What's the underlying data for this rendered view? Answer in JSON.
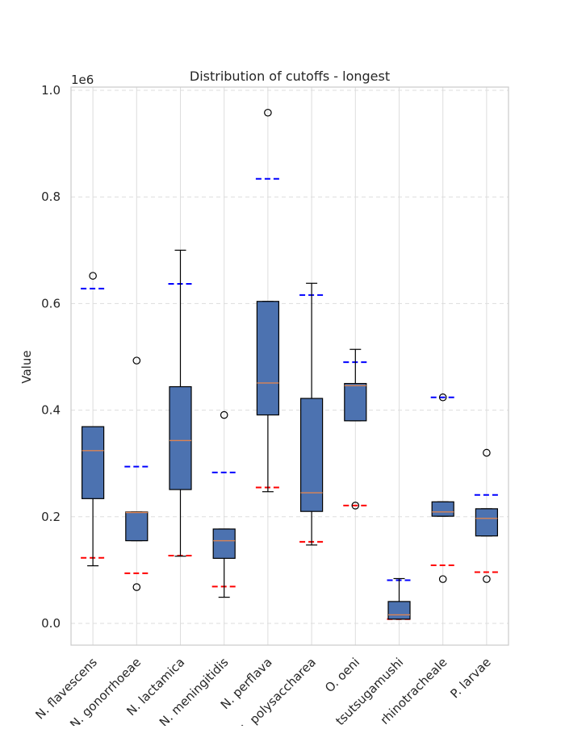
{
  "chart_data": {
    "type": "box",
    "title": "Distribution of cutoffs - longest",
    "xlabel": "",
    "ylabel": "Value",
    "y_exponent_label": "1e6",
    "ylim": [
      -0.04,
      1.005
    ],
    "yticks": [
      0.0,
      0.2,
      0.4,
      0.6,
      0.8,
      1.0
    ],
    "ytick_labels": [
      "0.0",
      "0.2",
      "0.4",
      "0.6",
      "0.8",
      "1.0"
    ],
    "grid": true,
    "colors": {
      "box_fill": "#4c72b0",
      "median": "#dd8452",
      "upper_ref": "#0000ff",
      "lower_ref": "#ff0000",
      "grid": "#dddddd",
      "axes_edge": "#cccccc"
    },
    "categories": [
      "N. flavescens",
      "N. gonorrhoeae",
      "N. lactamica",
      "N. meningitidis",
      "N. perflava",
      "N. polysaccharea",
      "O. oeni",
      "O. tsutsugamushi",
      "O. rhinotracheale",
      "P. larvae"
    ],
    "boxes": [
      {
        "whisker_low": 0.108,
        "q1": 0.234,
        "median": 0.324,
        "q3": 0.369,
        "whisker_high": 0.369,
        "outliers": [
          0.652
        ],
        "upper_ref": 0.628,
        "lower_ref": 0.123
      },
      {
        "whisker_low": 0.155,
        "q1": 0.155,
        "median": 0.208,
        "q3": 0.209,
        "whisker_high": 0.209,
        "outliers": [
          0.068,
          0.493
        ],
        "upper_ref": 0.294,
        "lower_ref": 0.094
      },
      {
        "whisker_low": 0.126,
        "q1": 0.251,
        "median": 0.343,
        "q3": 0.444,
        "whisker_high": 0.7,
        "outliers": [],
        "upper_ref": 0.637,
        "lower_ref": 0.127
      },
      {
        "whisker_low": 0.049,
        "q1": 0.122,
        "median": 0.155,
        "q3": 0.177,
        "whisker_high": 0.177,
        "outliers": [
          0.391
        ],
        "upper_ref": 0.283,
        "lower_ref": 0.069
      },
      {
        "whisker_low": 0.247,
        "q1": 0.391,
        "median": 0.451,
        "q3": 0.604,
        "whisker_high": 0.604,
        "outliers": [
          0.958
        ],
        "upper_ref": 0.834,
        "lower_ref": 0.255
      },
      {
        "whisker_low": 0.147,
        "q1": 0.21,
        "median": 0.245,
        "q3": 0.422,
        "whisker_high": 0.638,
        "outliers": [],
        "upper_ref": 0.616,
        "lower_ref": 0.153
      },
      {
        "whisker_low": 0.38,
        "q1": 0.38,
        "median": 0.446,
        "q3": 0.45,
        "whisker_high": 0.514,
        "outliers": [
          0.221
        ],
        "upper_ref": 0.49,
        "lower_ref": 0.221
      },
      {
        "whisker_low": 0.008,
        "q1": 0.008,
        "median": 0.016,
        "q3": 0.041,
        "whisker_high": 0.084,
        "outliers": [],
        "upper_ref": 0.081,
        "lower_ref": 0.008
      },
      {
        "whisker_low": 0.201,
        "q1": 0.201,
        "median": 0.209,
        "q3": 0.228,
        "whisker_high": 0.228,
        "outliers": [
          0.083,
          0.424
        ],
        "upper_ref": 0.424,
        "lower_ref": 0.109
      },
      {
        "whisker_low": 0.164,
        "q1": 0.164,
        "median": 0.197,
        "q3": 0.215,
        "whisker_high": 0.215,
        "outliers": [
          0.083,
          0.32
        ],
        "upper_ref": 0.241,
        "lower_ref": 0.096
      }
    ]
  }
}
